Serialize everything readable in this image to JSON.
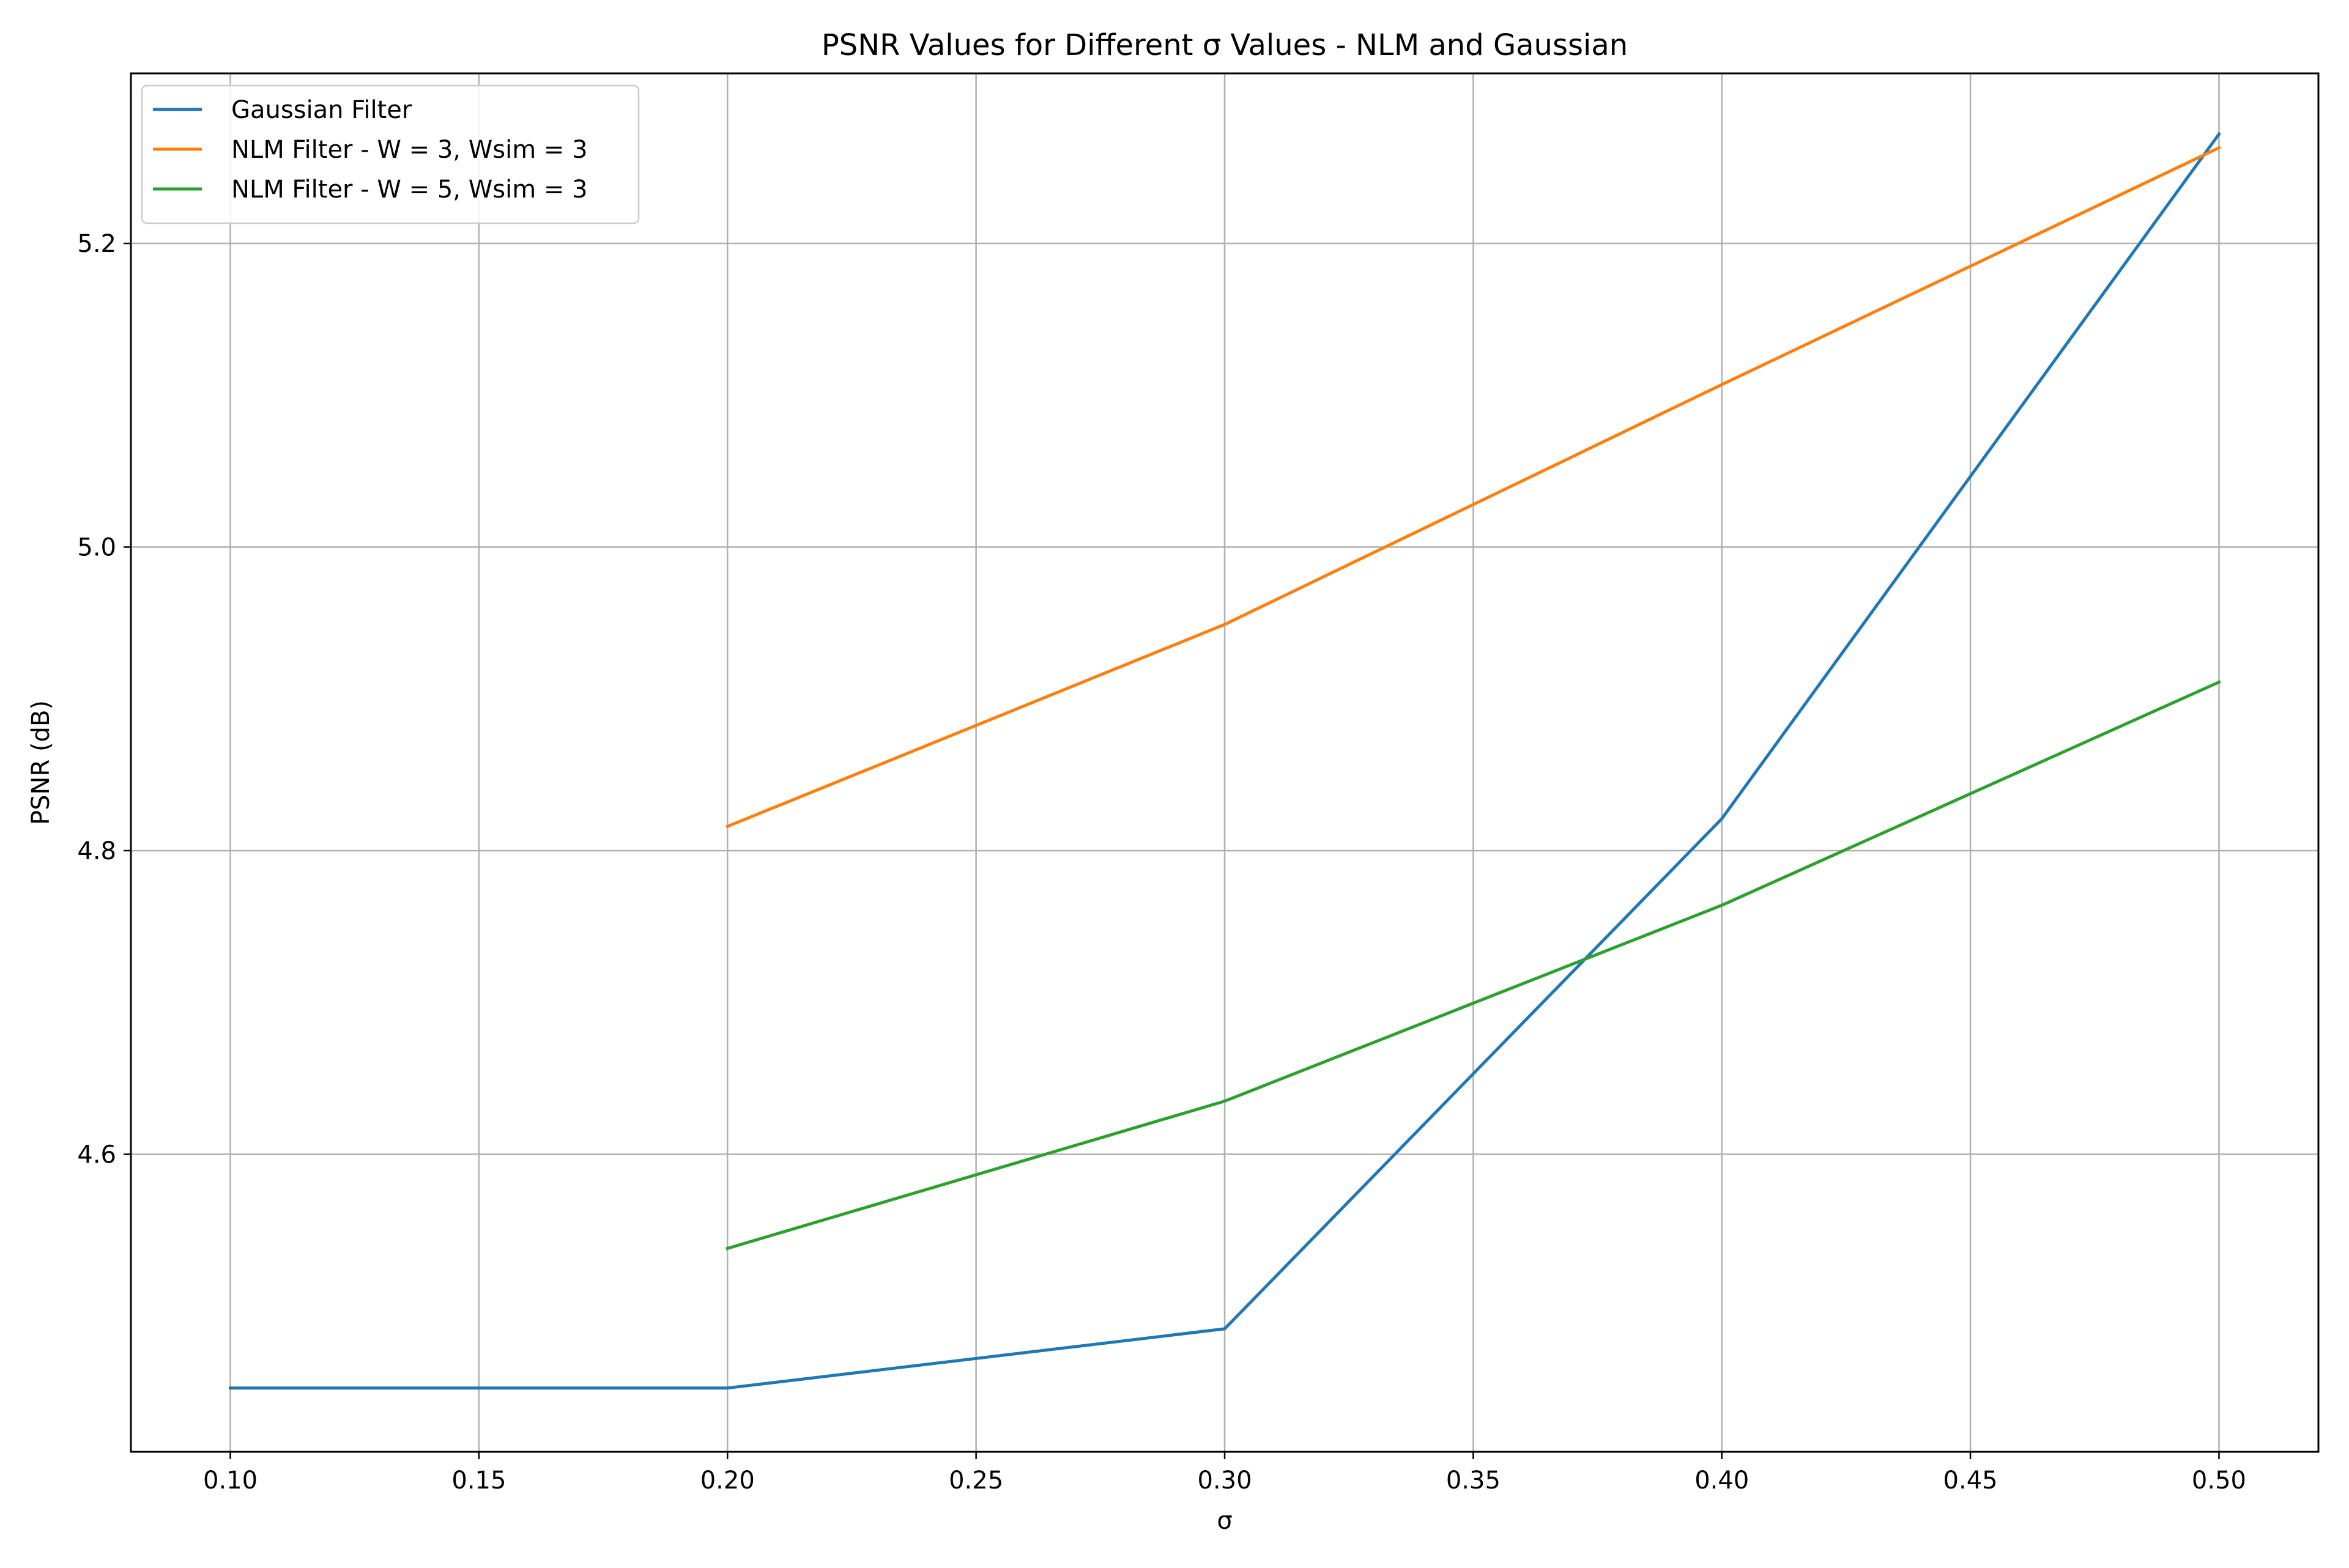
{
  "chart_data": {
    "type": "line",
    "title": "PSNR Values for Different σ Values - NLM and Gaussian",
    "xlabel": "σ",
    "ylabel": "PSNR (dB)",
    "xlim": [
      0.08,
      0.52
    ],
    "ylim": [
      4.404,
      5.312
    ],
    "x_ticks": [
      0.1,
      0.15,
      0.2,
      0.25,
      0.3,
      0.35,
      0.4,
      0.45,
      0.5
    ],
    "x_tick_labels": [
      "0.10",
      "0.15",
      "0.20",
      "0.25",
      "0.30",
      "0.35",
      "0.40",
      "0.45",
      "0.50"
    ],
    "y_ticks": [
      4.6,
      4.8,
      5.0,
      5.2
    ],
    "y_tick_labels": [
      "4.6",
      "4.8",
      "5.0",
      "5.2"
    ],
    "grid": true,
    "legend_position": "top-left",
    "series": [
      {
        "name": "Gaussian Filter",
        "color": "#1f77b4",
        "x": [
          0.1,
          0.2,
          0.3,
          0.4,
          0.5
        ],
        "y": [
          4.446,
          4.446,
          4.485,
          4.821,
          5.272
        ]
      },
      {
        "name": "NLM Filter - W = 3, Wsim = 3",
        "color": "#ff7f0e",
        "x": [
          0.2,
          0.3,
          0.4,
          0.5
        ],
        "y": [
          4.816,
          4.949,
          5.107,
          5.263
        ]
      },
      {
        "name": "NLM Filter - W = 5, Wsim = 3",
        "color": "#2ca02c",
        "x": [
          0.2,
          0.3,
          0.4,
          0.5
        ],
        "y": [
          4.538,
          4.635,
          4.764,
          4.911
        ]
      }
    ]
  }
}
